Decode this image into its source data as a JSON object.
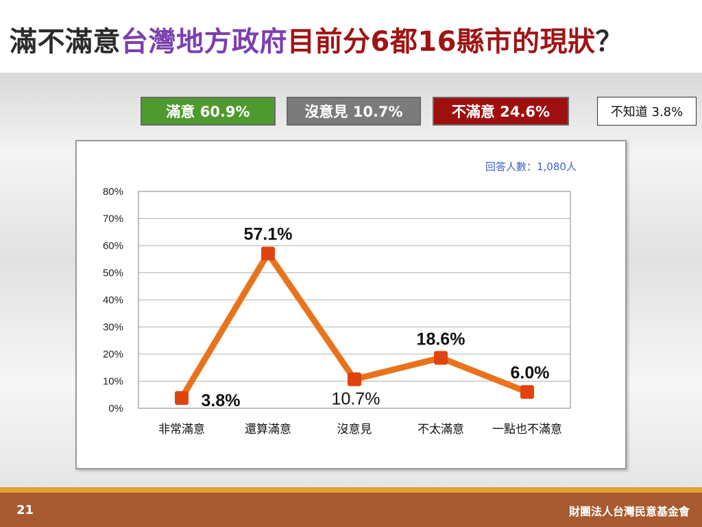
{
  "title": {
    "part1": "滿不滿意",
    "part2": "台灣地方政府",
    "part3": "目前分6都16縣市的現狀",
    "part4": "？"
  },
  "colors": {
    "title_purple": "#7b3fb1",
    "title_red": "#a01414",
    "satisfied_green": "#4e9a2e",
    "neutral_gray": "#7b7b7b",
    "dissatisfied_red": "#a00f0f",
    "line_orange": "#e8731c",
    "marker_red": "#e0440e",
    "footer_brown": "#a85a30",
    "footer_gold": "#e0a030"
  },
  "summary": {
    "satisfied": "滿意 60.9%",
    "neutral": "沒意見 10.7%",
    "dissatisfied": "不滿意 24.6%",
    "unknown": "不知道 3.8%"
  },
  "respondents": "回答人數：1,080人",
  "chart_data": {
    "type": "line",
    "categories": [
      "非常滿意",
      "還算滿意",
      "沒意見",
      "不太滿意",
      "一點也不滿意"
    ],
    "values": [
      3.8,
      57.1,
      10.7,
      18.6,
      6.0
    ],
    "data_labels": [
      "3.8%",
      "57.1%",
      "10.7%",
      "18.6%",
      "6.0%"
    ],
    "y_ticks": [
      "0%",
      "10%",
      "20%",
      "30%",
      "40%",
      "50%",
      "60%",
      "70%",
      "80%"
    ],
    "ylim": [
      0,
      80
    ],
    "grid": true
  },
  "footer": {
    "page_number": "21",
    "organization": "財團法人台灣民意基金會"
  }
}
